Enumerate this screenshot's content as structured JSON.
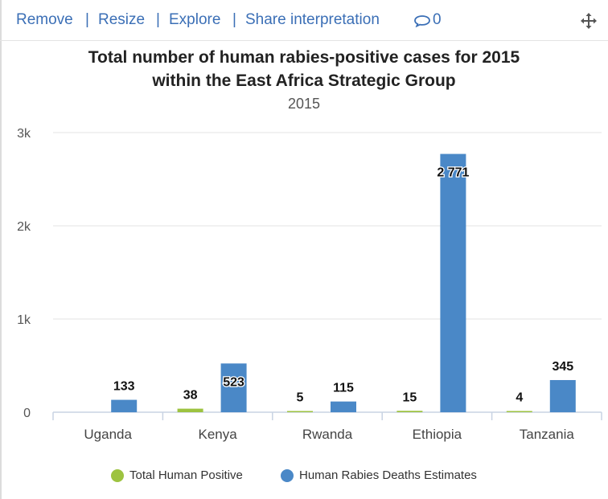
{
  "toolbar": {
    "remove": "Remove",
    "resize": "Resize",
    "explore": "Explore",
    "share": "Share interpretation",
    "separator": "|",
    "comment_count": "0",
    "comment_icon": "comment-icon",
    "move_icon": "move-icon"
  },
  "colors": {
    "link": "#3b6fb6",
    "series1": "#9dc340",
    "series2": "#4a88c7"
  },
  "chart_data": {
    "type": "bar",
    "title": "Total number of human rabies-positive cases for 2015 within the East Africa Strategic Group",
    "title_lines": [
      "Total number of human rabies-positive cases for 2015",
      "within the East Africa Strategic Group"
    ],
    "subtitle": "2015",
    "categories": [
      "Uganda",
      "Kenya",
      "Rwanda",
      "Ethiopia",
      "Tanzania"
    ],
    "series": [
      {
        "name": "Total Human Positive",
        "values": [
          null,
          38,
          5,
          15,
          4
        ],
        "labels": [
          "",
          "38",
          "5",
          "15",
          "4"
        ],
        "color": "#9dc340"
      },
      {
        "name": "Human Rabies Deaths Estimates",
        "values": [
          133,
          523,
          115,
          2771,
          345
        ],
        "labels": [
          "133",
          "523",
          "115",
          "2 771",
          "345"
        ],
        "color": "#4a88c7"
      }
    ],
    "yticks": [
      0,
      1000,
      2000,
      3000
    ],
    "ytick_labels": [
      "0",
      "1k",
      "2k",
      "3k"
    ],
    "ylim": [
      0,
      3000
    ],
    "grid": true,
    "legend_position": "bottom-center"
  }
}
